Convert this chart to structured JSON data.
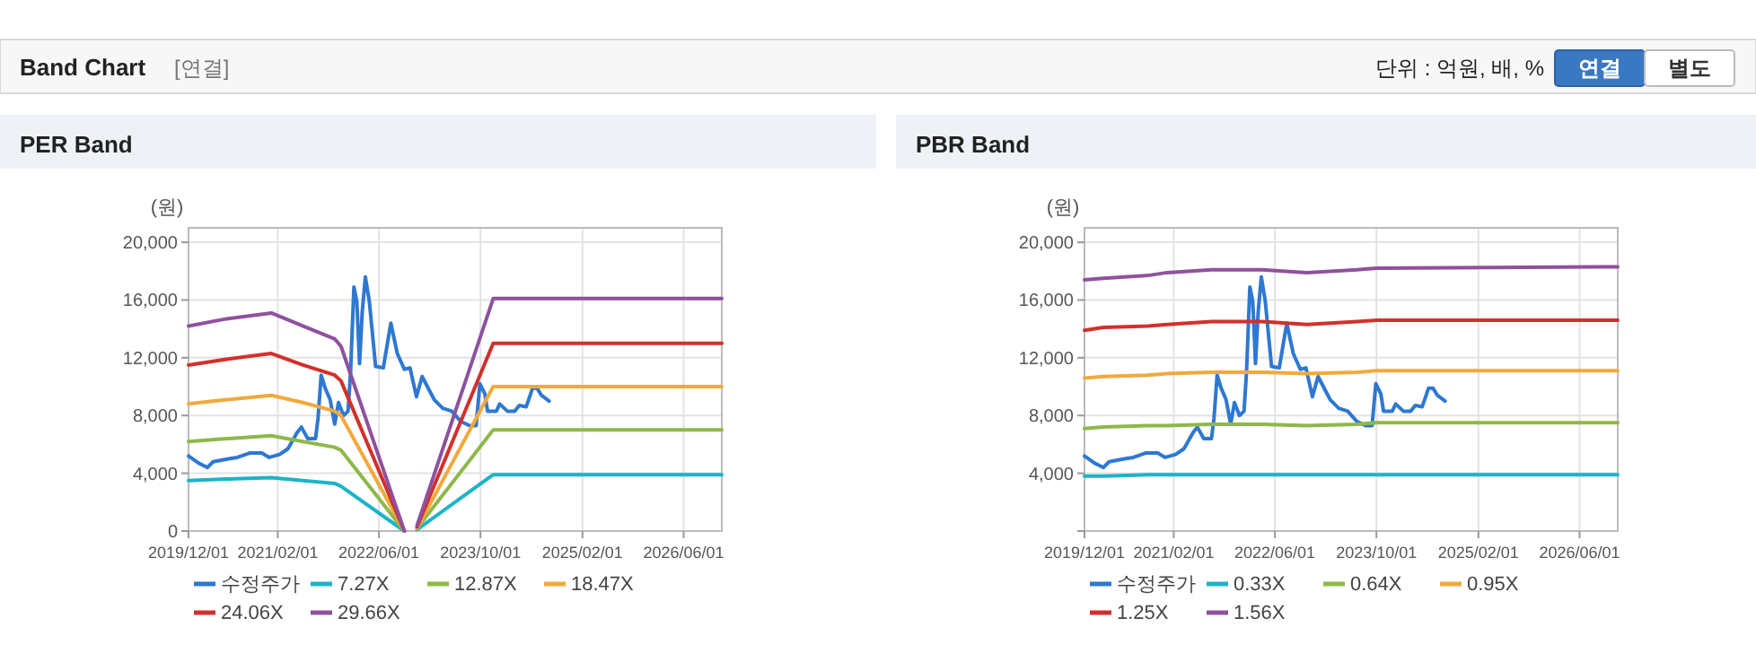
{
  "chart_data": [
    {
      "type": "other",
      "title": "Band Chart",
      "annotations": [
        "[연결]",
        "단위 : 억원, 배, %",
        "연결",
        "별도"
      ]
    },
    {
      "type": "line",
      "title": "PER Band",
      "ylabel": "(원)",
      "xlim": [
        "2019-12-01",
        "2026-12-01"
      ],
      "xticks": [
        {
          "value": "2019-12-01",
          "label": "2019/12/01"
        },
        {
          "value": "2021-02-01",
          "label": "2021/02/01"
        },
        {
          "value": "2022-06-01",
          "label": "2022/06/01"
        },
        {
          "value": "2023-10-01",
          "label": "2023/10/01"
        },
        {
          "value": "2025-02-01",
          "label": "2025/02/01"
        },
        {
          "value": "2026-06-01",
          "label": "2026/06/01"
        }
      ],
      "ylim": [
        0,
        21000
      ],
      "yticks": [
        {
          "value": 0,
          "label": "0"
        },
        {
          "value": 4000,
          "label": "4,000"
        },
        {
          "value": 8000,
          "label": "8,000"
        },
        {
          "value": 12000,
          "label": "12,000"
        },
        {
          "value": 16000,
          "label": "16,000"
        },
        {
          "value": 20000,
          "label": "20,000"
        }
      ],
      "grid": true,
      "legend": "bottom",
      "marker": "none",
      "line_style": "solid",
      "series": [
        {
          "name": "수정주가",
          "color": "#2e78d2",
          "x": [
            "2019-12-01",
            "2020-01-19",
            "2020-03-01",
            "2020-03-28",
            "2020-06-10",
            "2020-07-22",
            "2020-09-19",
            "2020-11-16",
            "2020-12-22",
            "2021-02-10",
            "2021-03-22",
            "2021-05-04",
            "2021-05-25",
            "2021-06-25",
            "2021-08-01",
            "2021-08-13",
            "2021-08-28",
            "2021-09-16",
            "2021-10-10",
            "2021-11-01",
            "2021-11-19",
            "2021-12-13",
            "2022-01-04",
            "2022-01-16",
            "2022-02-01",
            "2022-02-15",
            "2022-02-28",
            "2022-03-13",
            "2022-03-28",
            "2022-04-16",
            "2022-05-16",
            "2022-06-22",
            "2022-07-28",
            "2022-08-28",
            "2022-10-01",
            "2022-10-28",
            "2022-11-28",
            "2022-12-25",
            "2023-02-21",
            "2023-04-03",
            "2023-05-16",
            "2023-06-28",
            "2023-08-10",
            "2023-09-10",
            "2023-09-28",
            "2023-10-22",
            "2023-11-04",
            "2023-12-16",
            "2024-01-01",
            "2024-02-07",
            "2024-03-13",
            "2024-04-04",
            "2024-05-07",
            "2024-06-07",
            "2024-06-28",
            "2024-07-19",
            "2024-08-25"
          ],
          "values": [
            5200,
            4700,
            4400,
            4800,
            5000,
            5100,
            5400,
            5400,
            5100,
            5300,
            5700,
            6800,
            7200,
            6400,
            6400,
            7800,
            10800,
            9900,
            9100,
            7400,
            8900,
            8000,
            8300,
            11000,
            16900,
            15900,
            11600,
            15200,
            17600,
            15900,
            11400,
            11300,
            14400,
            12300,
            11200,
            11300,
            9300,
            10700,
            9100,
            8500,
            8300,
            7600,
            7300,
            7300,
            10200,
            9500,
            8300,
            8300,
            8800,
            8300,
            8300,
            8700,
            8600,
            9900,
            9900,
            9400,
            9000
          ]
        },
        {
          "name": "7.27X",
          "color": "#1db3c8",
          "x": [
            "2019-12-01",
            "2020-06-01",
            "2021-01-01",
            "2021-06-01",
            "2021-11-01",
            "2021-12-01",
            "2022-10-01",
            "2022-11-01",
            "2022-12-01",
            "2023-12-01",
            "2026-12-01"
          ],
          "values": [
            3500,
            3600,
            3700,
            3500,
            3300,
            3100,
            0,
            null,
            100,
            3900,
            3900
          ]
        },
        {
          "name": "12.87X",
          "color": "#8db84a",
          "x": [
            "2019-12-01",
            "2020-06-01",
            "2021-01-01",
            "2021-06-01",
            "2021-11-01",
            "2021-12-01",
            "2022-10-01",
            "2022-11-01",
            "2022-12-01",
            "2023-12-01",
            "2026-12-01"
          ],
          "values": [
            6200,
            6400,
            6600,
            6200,
            5800,
            5600,
            0,
            null,
            200,
            7000,
            7000
          ]
        },
        {
          "name": "18.47X",
          "color": "#f2a93b",
          "x": [
            "2019-12-01",
            "2020-06-01",
            "2021-01-01",
            "2021-06-01",
            "2021-11-01",
            "2021-12-01",
            "2022-10-01",
            "2022-11-01",
            "2022-12-01",
            "2023-12-01",
            "2026-12-01"
          ],
          "values": [
            8800,
            9100,
            9400,
            8900,
            8300,
            8000,
            0,
            null,
            200,
            10000,
            10000
          ]
        },
        {
          "name": "24.06X",
          "color": "#d2302c",
          "x": [
            "2019-12-01",
            "2020-06-01",
            "2021-01-01",
            "2021-06-01",
            "2021-11-01",
            "2021-12-01",
            "2022-10-01",
            "2022-11-01",
            "2022-12-01",
            "2023-12-01",
            "2026-12-01"
          ],
          "values": [
            11500,
            11900,
            12300,
            11500,
            10800,
            10400,
            0,
            null,
            300,
            13000,
            13000
          ]
        },
        {
          "name": "29.66X",
          "color": "#8f519e",
          "x": [
            "2019-12-01",
            "2020-06-01",
            "2021-01-01",
            "2021-06-01",
            "2021-11-01",
            "2021-12-01",
            "2022-10-01",
            "2022-11-01",
            "2022-12-01",
            "2023-12-01",
            "2026-12-01"
          ],
          "values": [
            14200,
            14700,
            15100,
            14200,
            13300,
            12800,
            0,
            null,
            400,
            16100,
            16100
          ]
        }
      ]
    },
    {
      "type": "line",
      "title": "PBR Band",
      "ylabel": "(원)",
      "xlim": [
        "2019-12-01",
        "2026-12-01"
      ],
      "xticks": [
        {
          "value": "2019-12-01",
          "label": "2019/12/01"
        },
        {
          "value": "2021-02-01",
          "label": "2021/02/01"
        },
        {
          "value": "2022-06-01",
          "label": "2022/06/01"
        },
        {
          "value": "2023-10-01",
          "label": "2023/10/01"
        },
        {
          "value": "2025-02-01",
          "label": "2025/02/01"
        },
        {
          "value": "2026-06-01",
          "label": "2026/06/01"
        }
      ],
      "ylim": [
        0,
        21000
      ],
      "yticks": [
        {
          "value": 0,
          "label": null
        },
        {
          "value": 4000,
          "label": "4,000"
        },
        {
          "value": 8000,
          "label": "8,000"
        },
        {
          "value": 12000,
          "label": "12,000"
        },
        {
          "value": 16000,
          "label": "16,000"
        },
        {
          "value": 20000,
          "label": "20,000"
        }
      ],
      "grid": true,
      "legend": "bottom",
      "marker": "none",
      "line_style": "solid",
      "series": [
        {
          "name": "수정주가",
          "color": "#2e78d2",
          "x": [
            "2019-12-01",
            "2020-01-19",
            "2020-03-01",
            "2020-03-28",
            "2020-06-10",
            "2020-07-22",
            "2020-09-19",
            "2020-11-16",
            "2020-12-22",
            "2021-02-10",
            "2021-03-22",
            "2021-05-04",
            "2021-05-25",
            "2021-06-25",
            "2021-08-01",
            "2021-08-13",
            "2021-08-28",
            "2021-09-16",
            "2021-10-10",
            "2021-11-01",
            "2021-11-19",
            "2021-12-13",
            "2022-01-04",
            "2022-01-16",
            "2022-02-01",
            "2022-02-15",
            "2022-02-28",
            "2022-03-13",
            "2022-03-28",
            "2022-04-16",
            "2022-05-16",
            "2022-06-22",
            "2022-07-28",
            "2022-08-28",
            "2022-10-01",
            "2022-10-28",
            "2022-11-28",
            "2022-12-25",
            "2023-02-21",
            "2023-04-03",
            "2023-05-16",
            "2023-06-28",
            "2023-08-10",
            "2023-09-10",
            "2023-09-28",
            "2023-10-22",
            "2023-11-04",
            "2023-12-16",
            "2024-01-01",
            "2024-02-07",
            "2024-03-13",
            "2024-04-04",
            "2024-05-07",
            "2024-06-07",
            "2024-06-28",
            "2024-07-19",
            "2024-08-25"
          ],
          "values": [
            5200,
            4700,
            4400,
            4800,
            5000,
            5100,
            5400,
            5400,
            5100,
            5300,
            5700,
            6800,
            7200,
            6400,
            6400,
            7800,
            10800,
            9900,
            9100,
            7400,
            8900,
            8000,
            8300,
            11000,
            16900,
            15900,
            11600,
            15200,
            17600,
            15900,
            11400,
            11300,
            14400,
            12300,
            11200,
            11300,
            9300,
            10700,
            9100,
            8500,
            8300,
            7600,
            7300,
            7300,
            10200,
            9500,
            8300,
            8300,
            8800,
            8300,
            8300,
            8700,
            8600,
            9900,
            9900,
            9400,
            9000
          ]
        },
        {
          "name": "0.33X",
          "color": "#1db3c8",
          "x": [
            "2019-12-01",
            "2020-03-01",
            "2020-10-01",
            "2021-01-01",
            "2021-08-01",
            "2022-04-01",
            "2022-11-01",
            "2023-07-01",
            "2023-10-01",
            "2026-12-01"
          ],
          "values": [
            3800,
            3800,
            3900,
            3900,
            3900,
            3900,
            3900,
            3900,
            3900,
            3900
          ]
        },
        {
          "name": "0.64X",
          "color": "#8db84a",
          "x": [
            "2019-12-01",
            "2020-03-01",
            "2020-10-01",
            "2021-01-01",
            "2021-08-01",
            "2022-04-01",
            "2022-11-01",
            "2023-07-01",
            "2023-10-01",
            "2026-12-01"
          ],
          "values": [
            7100,
            7200,
            7300,
            7300,
            7400,
            7400,
            7300,
            7400,
            7500,
            7500
          ]
        },
        {
          "name": "0.95X",
          "color": "#f2a93b",
          "x": [
            "2019-12-01",
            "2020-03-01",
            "2020-10-01",
            "2021-01-01",
            "2021-08-01",
            "2022-04-01",
            "2022-11-01",
            "2023-07-01",
            "2023-10-01",
            "2026-12-01"
          ],
          "values": [
            10600,
            10700,
            10800,
            10900,
            11000,
            11000,
            10900,
            11000,
            11100,
            11100
          ]
        },
        {
          "name": "1.25X",
          "color": "#d2302c",
          "x": [
            "2019-12-01",
            "2020-03-01",
            "2020-10-01",
            "2021-01-01",
            "2021-08-01",
            "2022-04-01",
            "2022-11-01",
            "2023-07-01",
            "2023-10-01",
            "2026-12-01"
          ],
          "values": [
            13900,
            14100,
            14200,
            14300,
            14500,
            14500,
            14300,
            14500,
            14600,
            14600
          ]
        },
        {
          "name": "1.56X",
          "color": "#8f519e",
          "x": [
            "2019-12-01",
            "2020-03-01",
            "2020-10-01",
            "2021-01-01",
            "2021-08-01",
            "2022-04-01",
            "2022-11-01",
            "2023-07-01",
            "2023-10-01",
            "2026-12-01"
          ],
          "values": [
            17400,
            17500,
            17700,
            17900,
            18100,
            18100,
            17900,
            18100,
            18200,
            18300
          ]
        }
      ]
    }
  ]
}
